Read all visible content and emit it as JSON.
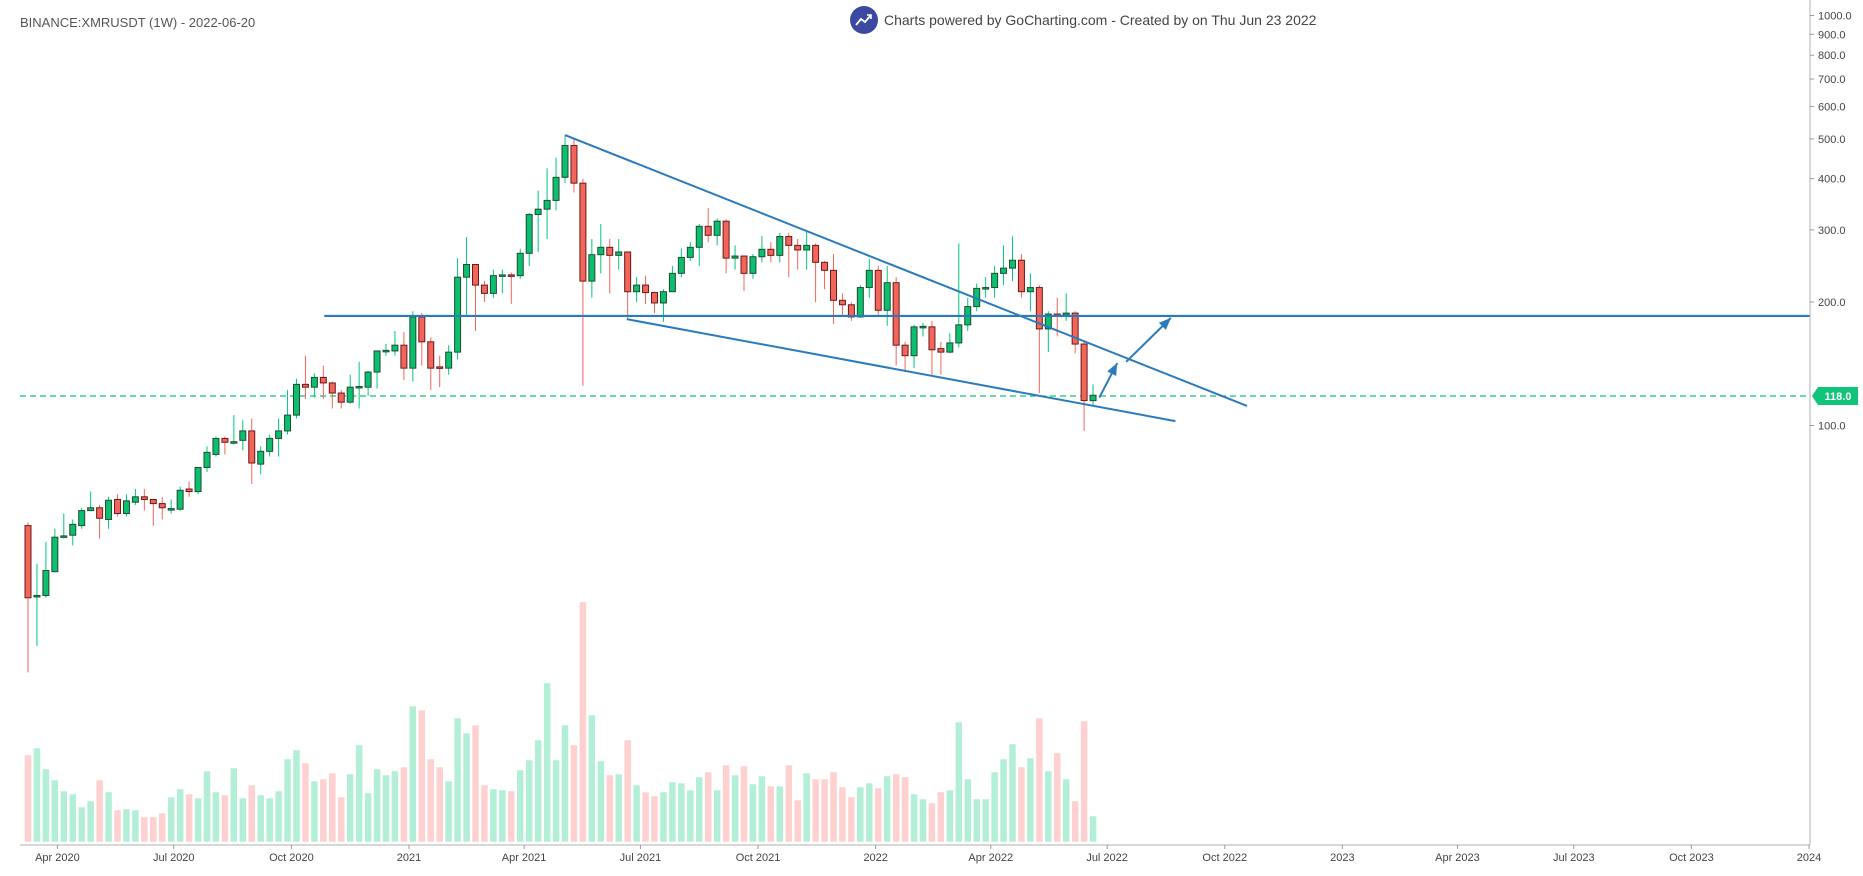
{
  "header": {
    "title": "BINANCE:XMRUSDT (1W) - 2022-06-20",
    "credit": "Charts powered by GoCharting.com - Created by  on Thu Jun 23 2022"
  },
  "colors": {
    "up": "#0cbf6e",
    "up_border": "#1f4b33",
    "up_wick": "#00c879",
    "down": "#f2655b",
    "down_border": "#6b1a1a",
    "down_wick": "#f2655b",
    "vol_up": "#b3efd6",
    "vol_down": "#ffd0d0",
    "drawing": "#2a7bbd",
    "last_price": "#10c47a",
    "logo": "#3b4aa0"
  },
  "chart_data": {
    "type": "candlestick",
    "symbol": "BINANCE:XMRUSDT",
    "interval": "1W",
    "x_start": "2020-03-09",
    "y_scale": "log",
    "ylim": [
      17,
      1000
    ],
    "yticks": [
      "1000.0",
      "900.0",
      "800.0",
      "700.0",
      "600.0",
      "500.0",
      "400.0",
      "300.0",
      "200.0",
      "100.0"
    ],
    "ytick_values": [
      1000,
      900,
      800,
      700,
      600,
      500,
      400,
      300,
      200,
      100
    ],
    "xticks": [
      {
        "label": "Apr 2020",
        "date": "2020-04-01"
      },
      {
        "label": "Jul 2020",
        "date": "2020-07-01"
      },
      {
        "label": "Oct 2020",
        "date": "2020-10-01"
      },
      {
        "label": "2021",
        "date": "2021-01-01"
      },
      {
        "label": "Apr 2021",
        "date": "2021-04-01"
      },
      {
        "label": "Jul 2021",
        "date": "2021-07-01"
      },
      {
        "label": "Oct 2021",
        "date": "2021-10-01"
      },
      {
        "label": "2022",
        "date": "2022-01-01"
      },
      {
        "label": "Apr 2022",
        "date": "2022-04-01"
      },
      {
        "label": "Jul 2022",
        "date": "2022-07-01"
      },
      {
        "label": "Oct 2022",
        "date": "2022-10-01"
      },
      {
        "label": "2023",
        "date": "2023-01-01"
      },
      {
        "label": "Apr 2023",
        "date": "2023-04-01"
      },
      {
        "label": "Jul 2023",
        "date": "2023-07-01"
      },
      {
        "label": "Oct 2023",
        "date": "2023-10-01"
      },
      {
        "label": "2024",
        "date": "2024-01-01"
      }
    ],
    "last_price": 118.0,
    "last_price_label": "118.0",
    "ohlc": [
      [
        57,
        58,
        25,
        38
      ],
      [
        38.5,
        46,
        29,
        38.5
      ],
      [
        38.5,
        52,
        38,
        44.3
      ],
      [
        44,
        56,
        44,
        53.4
      ],
      [
        53.5,
        61,
        53,
        53.8
      ],
      [
        54,
        59,
        51,
        57.4
      ],
      [
        57,
        63,
        56,
        62
      ],
      [
        62,
        69,
        62,
        63
      ],
      [
        63,
        64,
        53,
        59.4
      ],
      [
        59,
        67,
        56,
        65.7
      ],
      [
        66,
        68,
        60,
        61
      ],
      [
        61,
        68,
        60,
        65.5
      ],
      [
        65,
        70,
        64,
        67
      ],
      [
        67,
        70,
        62,
        66
      ],
      [
        66,
        66,
        57,
        64.5
      ],
      [
        64.5,
        67,
        59,
        63
      ],
      [
        62.5,
        66,
        61,
        62.7
      ],
      [
        62.5,
        71,
        62,
        69.5
      ],
      [
        70,
        73,
        67,
        69
      ],
      [
        69,
        79,
        68,
        79
      ],
      [
        79,
        89,
        77,
        86
      ],
      [
        85,
        94,
        84,
        93
      ],
      [
        93,
        94,
        85,
        91
      ],
      [
        91,
        106,
        90,
        91.3
      ],
      [
        92,
        103,
        87,
        97
      ],
      [
        97,
        104,
        72,
        81
      ],
      [
        80.5,
        89,
        76,
        86.5
      ],
      [
        86.5,
        95,
        84,
        93
      ],
      [
        93,
        104,
        84,
        97
      ],
      [
        97,
        122,
        95,
        106
      ],
      [
        106,
        130,
        104,
        126
      ],
      [
        126,
        148,
        116,
        124
      ],
      [
        124,
        134,
        117,
        131
      ],
      [
        131,
        140,
        116,
        127
      ],
      [
        127,
        128,
        110,
        120
      ],
      [
        120,
        122,
        110,
        114
      ],
      [
        114,
        133,
        113,
        124
      ],
      [
        124,
        143,
        110,
        124.5
      ],
      [
        124,
        136,
        118,
        135
      ],
      [
        135,
        152,
        123,
        152
      ],
      [
        152,
        158,
        148,
        152.5
      ],
      [
        152,
        170,
        148,
        157
      ],
      [
        157,
        169,
        129,
        138
      ],
      [
        138,
        190,
        128,
        184
      ],
      [
        184,
        188,
        140,
        160
      ],
      [
        160,
        164,
        122,
        138
      ],
      [
        139,
        148,
        124,
        138.5
      ],
      [
        138,
        157,
        133,
        151
      ],
      [
        151,
        256,
        145,
        230
      ],
      [
        230,
        288,
        185,
        247
      ],
      [
        247,
        247,
        170,
        220
      ],
      [
        220,
        225,
        200,
        210
      ],
      [
        210,
        240,
        205,
        232
      ],
      [
        232,
        240,
        210,
        233
      ],
      [
        233,
        236,
        198,
        232
      ],
      [
        232,
        270,
        228,
        263
      ],
      [
        263,
        330,
        245,
        327
      ],
      [
        327,
        374,
        265,
        337
      ],
      [
        337,
        424,
        285,
        354
      ],
      [
        354,
        450,
        335,
        403
      ],
      [
        403,
        510,
        390,
        482
      ],
      [
        482,
        500,
        370,
        390
      ],
      [
        390,
        400,
        125,
        225
      ],
      [
        225,
        285,
        205,
        261
      ],
      [
        261,
        310,
        235,
        272
      ],
      [
        272,
        285,
        210,
        260
      ],
      [
        260,
        285,
        240,
        265
      ],
      [
        265,
        265,
        181,
        212
      ],
      [
        212,
        230,
        200,
        220
      ],
      [
        220,
        232,
        198,
        211
      ],
      [
        211,
        212,
        188,
        199
      ],
      [
        199,
        215,
        179,
        212
      ],
      [
        212,
        245,
        212,
        235
      ],
      [
        235,
        270,
        230,
        257
      ],
      [
        257,
        280,
        252,
        272
      ],
      [
        272,
        310,
        245,
        306
      ],
      [
        306,
        339,
        280,
        291
      ],
      [
        291,
        320,
        275,
        315
      ],
      [
        315,
        318,
        235,
        256
      ],
      [
        256,
        275,
        240,
        259
      ],
      [
        259,
        260,
        213,
        235
      ],
      [
        235,
        262,
        228,
        258
      ],
      [
        258,
        290,
        250,
        269
      ],
      [
        269,
        280,
        250,
        260
      ],
      [
        260,
        295,
        250,
        289
      ],
      [
        289,
        295,
        230,
        275
      ],
      [
        275,
        285,
        240,
        268
      ],
      [
        268,
        298,
        240,
        275
      ],
      [
        275,
        278,
        200,
        250
      ],
      [
        250,
        252,
        215,
        239
      ],
      [
        239,
        262,
        177,
        202
      ],
      [
        202,
        210,
        185,
        197
      ],
      [
        197,
        200,
        180,
        184
      ],
      [
        184,
        220,
        183,
        217
      ],
      [
        217,
        255,
        205,
        239
      ],
      [
        239,
        245,
        185,
        191
      ],
      [
        191,
        245,
        175,
        223
      ],
      [
        223,
        230,
        140,
        157
      ],
      [
        157,
        160,
        135,
        148
      ],
      [
        148,
        176,
        138,
        174
      ],
      [
        174,
        178,
        165,
        174.5
      ],
      [
        174,
        180,
        133,
        153
      ],
      [
        154,
        160,
        133,
        151
      ],
      [
        151,
        168,
        150,
        159
      ],
      [
        159,
        278,
        155,
        176
      ],
      [
        176,
        205,
        170,
        195
      ],
      [
        195,
        222,
        190,
        216
      ],
      [
        216,
        230,
        205,
        217
      ],
      [
        217,
        245,
        205,
        235
      ],
      [
        235,
        275,
        220,
        242
      ],
      [
        242,
        289,
        225,
        253
      ],
      [
        253,
        262,
        205,
        212
      ],
      [
        212,
        235,
        190,
        217
      ],
      [
        217,
        220,
        120,
        172
      ],
      [
        172,
        190,
        151,
        187
      ],
      [
        187,
        205,
        165,
        186
      ],
      [
        186,
        210,
        180,
        188
      ],
      [
        188,
        190,
        150,
        158
      ],
      [
        158,
        160,
        97,
        115
      ],
      [
        115,
        126,
        112,
        118.5
      ]
    ],
    "volume_relative": [
      87,
      94,
      73,
      62,
      51,
      48,
      35,
      41,
      62,
      50,
      32,
      33,
      32,
      25,
      25,
      29,
      45,
      53,
      48,
      44,
      71,
      50,
      47,
      74,
      44,
      57,
      47,
      44,
      51,
      83,
      92,
      79,
      61,
      63,
      69,
      45,
      68,
      97,
      49,
      73,
      67,
      71,
      75,
      136,
      132,
      83,
      75,
      61,
      124,
      109,
      117,
      57,
      53,
      52,
      51,
      72,
      82,
      102,
      159,
      82,
      117,
      97,
      240,
      127,
      81,
      67,
      68,
      102,
      57,
      50,
      46,
      50,
      60,
      59,
      52,
      65,
      70,
      52,
      77,
      67,
      76,
      58,
      66,
      56,
      56,
      77,
      42,
      69,
      63,
      63,
      70,
      55,
      45,
      55,
      59,
      54,
      66,
      68,
      65,
      48,
      43,
      39,
      50,
      52,
      120,
      63,
      43,
      43,
      70,
      83,
      98,
      75,
      84,
      124,
      71,
      89,
      63,
      41,
      121,
      26
    ],
    "drawings": {
      "horizontal_line": {
        "price": 185,
        "from_week": 33.1
      },
      "upper_trendline": {
        "from": {
          "week": 60,
          "price": 511
        },
        "to": {
          "week": 136.2,
          "price": 111.6
        }
      },
      "lower_trendline": {
        "from": {
          "week": 66.9,
          "price": 181.7
        },
        "to": {
          "week": 128.2,
          "price": 102.5
        }
      },
      "arrows": [
        {
          "from": {
            "week": 119.7,
            "price": 117
          },
          "to": {
            "week": 121.7,
            "price": 142
          }
        },
        {
          "from": {
            "week": 122.7,
            "price": 143
          },
          "to": {
            "week": 127.7,
            "price": 183
          }
        }
      ]
    }
  }
}
